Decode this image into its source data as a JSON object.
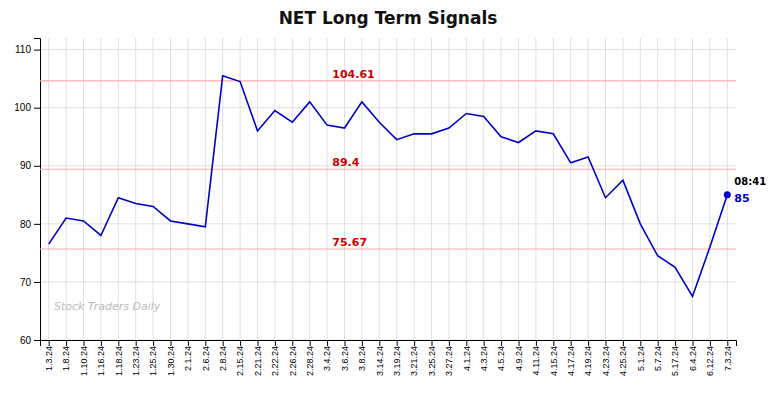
{
  "chart_data": {
    "type": "line",
    "title": "NET Long Term Signals",
    "categories": [
      "1.3.24",
      "1.8.24",
      "1.10.24",
      "1.16.24",
      "1.18.24",
      "1.23.24",
      "1.25.24",
      "1.30.24",
      "2.1.24",
      "2.6.24",
      "2.8.24",
      "2.15.24",
      "2.21.24",
      "2.22.24",
      "2.26.24",
      "2.28.24",
      "3.4.24",
      "3.6.24",
      "3.8.24",
      "3.14.24",
      "3.19.24",
      "3.21.24",
      "3.25.24",
      "3.27.24",
      "4.1.24",
      "4.3.24",
      "4.5.24",
      "4.9.24",
      "4.11.24",
      "4.15.24",
      "4.17.24",
      "4.19.24",
      "4.23.24",
      "4.25.24",
      "5.1.24",
      "5.7.24",
      "5.17.24",
      "6.4.24",
      "6.12.24",
      "7.3.24"
    ],
    "values": [
      76.5,
      81.0,
      80.5,
      78.0,
      84.5,
      83.5,
      83.0,
      80.5,
      80.0,
      79.5,
      105.5,
      104.5,
      96.0,
      99.5,
      97.5,
      101.0,
      97.0,
      96.5,
      101.0,
      97.5,
      94.5,
      95.5,
      95.5,
      96.5,
      99.0,
      98.5,
      95.0,
      94.0,
      96.0,
      95.5,
      90.5,
      91.5,
      84.5,
      87.5,
      80.0,
      74.5,
      72.5,
      67.5,
      76.0,
      85.0
    ],
    "color": "#0000cc",
    "ylim": [
      60,
      112
    ],
    "yticks": [
      60,
      70,
      80,
      90,
      100,
      110
    ],
    "grid": true,
    "reference_lines": [
      {
        "value": 104.61,
        "color": "#ffaaaa"
      },
      {
        "value": 89.4,
        "color": "#ffaaaa"
      },
      {
        "value": 75.67,
        "color": "#ffaaaa"
      }
    ],
    "watermark": "Stock Traders Daily",
    "annotations": [
      {
        "text": "08:41",
        "x": "7.3.24",
        "y": 85.0
      },
      {
        "text": "85",
        "x": "7.3.24",
        "y": 85.0
      }
    ]
  }
}
